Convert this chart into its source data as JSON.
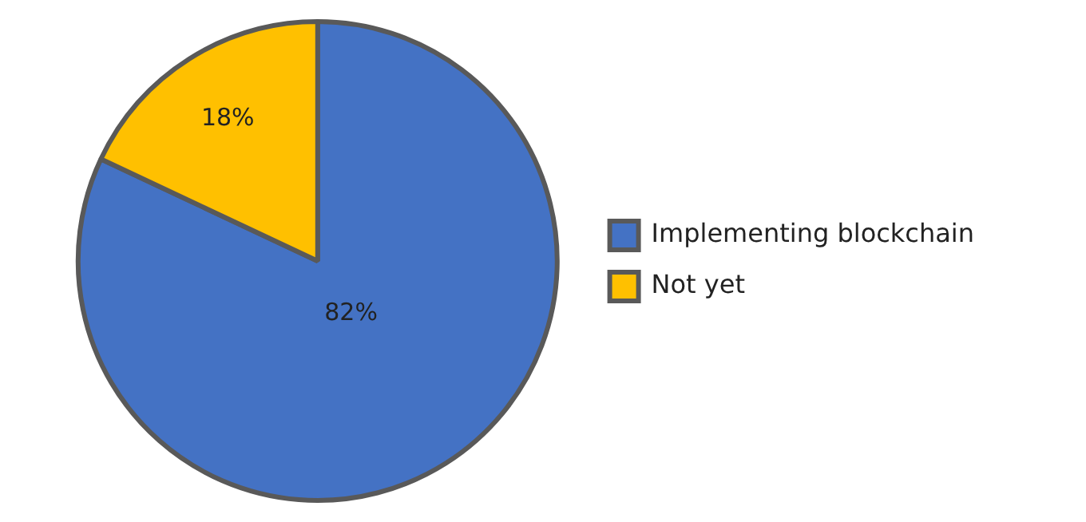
{
  "chart_data": {
    "type": "pie",
    "categories": [
      "Implementing blockchain",
      "Not yet"
    ],
    "values": [
      82,
      18
    ],
    "colors": [
      "#4472c4",
      "#ffc000"
    ],
    "value_labels": [
      "82%",
      "18%"
    ],
    "legend": "right"
  }
}
